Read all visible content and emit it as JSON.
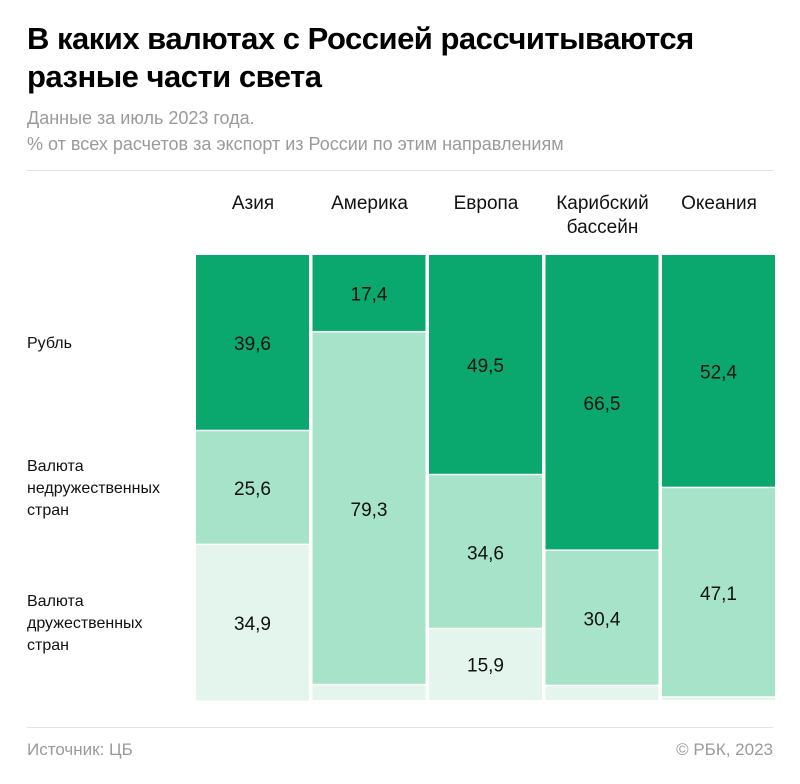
{
  "header": {
    "title": "В каких валютах с Россией рассчитываются разные части света",
    "subtitle_1": "Данные за июль 2023 года.",
    "subtitle_2": "% от всех расчетов за экспорт из России по этим направлениям"
  },
  "footer": {
    "source": "Источник: ЦБ",
    "copyright": "© РБК, 2023"
  },
  "chart_data": {
    "type": "bar",
    "stacked": true,
    "orientation": "vertical",
    "ylim": [
      0,
      100
    ],
    "categories": [
      "Азия",
      "Америка",
      "Европа",
      "Карибский бассейн",
      "Океания"
    ],
    "category_lines": [
      [
        "Азия"
      ],
      [
        "Америка"
      ],
      [
        "Европа"
      ],
      [
        "Карибский",
        "бассейн"
      ],
      [
        "Океания"
      ]
    ],
    "series": [
      {
        "name": "Рубль",
        "name_lines": [
          "Рубль"
        ],
        "color": "#0aa86e",
        "values": [
          39.6,
          17.4,
          49.5,
          66.5,
          52.4
        ],
        "labels": [
          "39,6",
          "17,4",
          "49,5",
          "66,5",
          "52,4"
        ]
      },
      {
        "name": "Валюта недружественных стран",
        "name_lines": [
          "Валюта",
          "недружественных",
          "стран"
        ],
        "color": "#a7e3c8",
        "values": [
          25.6,
          79.3,
          34.6,
          30.4,
          47.1
        ],
        "labels": [
          "25,6",
          "79,3",
          "34,6",
          "30,4",
          "47,1"
        ]
      },
      {
        "name": "Валюта дружественных стран",
        "name_lines": [
          "Валюта",
          "дружественных",
          "стран"
        ],
        "color": "#e3f5ec",
        "values": [
          34.9,
          3.3,
          15.9,
          3.1,
          0.5
        ],
        "labels": [
          "34,9",
          null,
          "15,9",
          null,
          null
        ]
      }
    ],
    "grid": false,
    "legend": "left"
  }
}
